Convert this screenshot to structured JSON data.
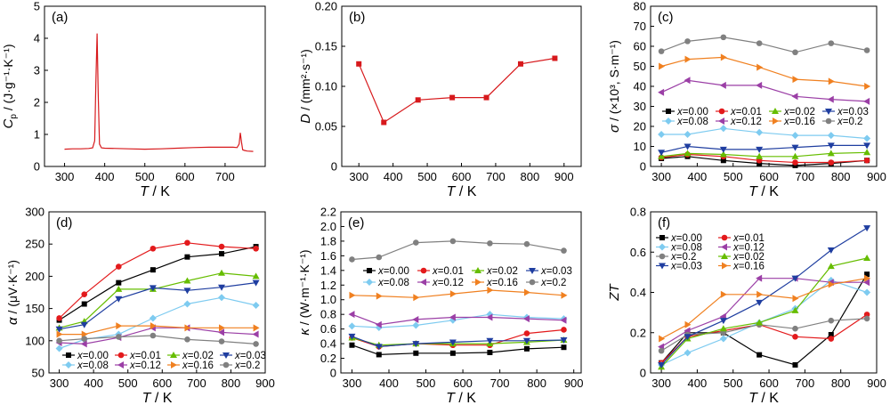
{
  "chart_data": [
    {
      "panel": "(a)",
      "type": "line",
      "ylabel_var": "C",
      "ylabel_sub": "p",
      "ylabel_unit": " / (J·g⁻¹·K⁻¹)",
      "xlabel_var": "T",
      "xlabel_unit": " / K",
      "xlim": [
        250,
        800
      ],
      "xticks": [
        300,
        400,
        500,
        600,
        700
      ],
      "ylim": [
        0,
        5
      ],
      "yticks": [
        0,
        1,
        2,
        3,
        4,
        5
      ],
      "legend": [],
      "series": [
        {
          "color": "#d7191c",
          "marker": "none",
          "x": [
            300,
            320,
            340,
            360,
            370,
            375,
            378,
            381,
            384,
            387,
            392,
            400,
            430,
            460,
            500,
            540,
            580,
            620,
            660,
            700,
            720,
            730,
            735,
            738,
            741,
            744,
            748,
            755,
            770
          ],
          "y": [
            0.54,
            0.55,
            0.55,
            0.56,
            0.58,
            0.8,
            2.6,
            4.15,
            2.2,
            0.7,
            0.58,
            0.57,
            0.56,
            0.55,
            0.54,
            0.55,
            0.57,
            0.59,
            0.6,
            0.6,
            0.6,
            0.59,
            0.7,
            1.05,
            0.75,
            0.52,
            0.5,
            0.48,
            0.47
          ]
        }
      ]
    },
    {
      "panel": "(b)",
      "type": "line",
      "ylabel_var": "D",
      "ylabel_sub": "",
      "ylabel_unit": " / (mm²·s⁻¹)",
      "xlabel_var": "T",
      "xlabel_unit": " / K",
      "xlim": [
        250,
        950
      ],
      "xticks": [
        300,
        400,
        500,
        600,
        700,
        800,
        900
      ],
      "ylim": [
        0,
        0.2
      ],
      "yticks": [
        0,
        0.05,
        0.1,
        0.15,
        0.2
      ],
      "yticklabels": [
        "0",
        "0.05",
        "0.10",
        "0.15",
        "0.20"
      ],
      "legend": [],
      "series": [
        {
          "color": "#d7191c",
          "marker": "square",
          "x": [
            300,
            373,
            473,
            573,
            673,
            773,
            873
          ],
          "y": [
            0.128,
            0.055,
            0.083,
            0.086,
            0.086,
            0.128,
            0.135
          ]
        }
      ]
    },
    {
      "panel": "(c)",
      "type": "line",
      "ylabel_var": "σ",
      "ylabel_sub": "",
      "ylabel_unit": " / (×10³, S·m⁻¹)",
      "xlabel_var": "T",
      "xlabel_unit": " / K",
      "xlim": [
        270,
        900
      ],
      "xticks": [
        300,
        400,
        500,
        600,
        700,
        800,
        900
      ],
      "ylim": [
        0,
        80
      ],
      "yticks": [
        0,
        10,
        20,
        30,
        40,
        50,
        60,
        70,
        80
      ],
      "legend": [
        "x=0.00",
        "x=0.01",
        "x=0.02",
        "x=0.03",
        "x=0.08",
        "x=0.12",
        "x=0.16",
        "x=0.2"
      ],
      "series": [
        {
          "name": "x=0.00",
          "color": "#000000",
          "marker": "square",
          "x": [
            300,
            373,
            473,
            573,
            673,
            773,
            873
          ],
          "y": [
            4,
            5,
            3,
            1.5,
            0.5,
            1.5,
            3
          ]
        },
        {
          "name": "x=0.01",
          "color": "#e31a1c",
          "marker": "circle",
          "x": [
            300,
            373,
            473,
            573,
            673,
            773,
            873
          ],
          "y": [
            4.5,
            6,
            5,
            3,
            2,
            2,
            3
          ]
        },
        {
          "name": "x=0.02",
          "color": "#66bd00",
          "marker": "triangle",
          "x": [
            300,
            373,
            473,
            573,
            673,
            773,
            873
          ],
          "y": [
            5,
            6.5,
            6,
            5,
            5,
            6.5,
            7
          ]
        },
        {
          "name": "x=0.03",
          "color": "#1f3ea0",
          "marker": "triangle-down",
          "x": [
            300,
            373,
            473,
            573,
            673,
            773,
            873
          ],
          "y": [
            7,
            10,
            8.5,
            8.5,
            9.5,
            10.5,
            10.5
          ]
        },
        {
          "name": "x=0.08",
          "color": "#7ecbf0",
          "marker": "diamond",
          "x": [
            300,
            373,
            473,
            573,
            673,
            773,
            873
          ],
          "y": [
            16,
            16,
            19,
            17,
            15.5,
            15.5,
            14
          ]
        },
        {
          "name": "x=0.12",
          "color": "#9b3fa6",
          "marker": "triangle-left",
          "x": [
            300,
            373,
            473,
            573,
            673,
            773,
            873
          ],
          "y": [
            37,
            43,
            40.5,
            40.5,
            35,
            33.5,
            32.5
          ]
        },
        {
          "name": "x=0.16",
          "color": "#f08020",
          "marker": "triangle-right",
          "x": [
            300,
            373,
            473,
            573,
            673,
            773,
            873
          ],
          "y": [
            50,
            53.5,
            54.5,
            49.5,
            43.5,
            42.5,
            40
          ]
        },
        {
          "name": "x=0.2",
          "color": "#808080",
          "marker": "circle",
          "x": [
            300,
            373,
            473,
            573,
            673,
            773,
            873
          ],
          "y": [
            57.5,
            62.5,
            64.5,
            61.5,
            57,
            61.5,
            58
          ]
        }
      ]
    },
    {
      "panel": "(d)",
      "type": "line",
      "ylabel_var": "α",
      "ylabel_sub": "",
      "ylabel_unit": " / (μV·K⁻¹)",
      "xlabel_var": "T",
      "xlabel_unit": " / K",
      "xlim": [
        270,
        900
      ],
      "xticks": [
        300,
        400,
        500,
        600,
        700,
        800,
        900
      ],
      "ylim": [
        50,
        300
      ],
      "yticks": [
        50,
        100,
        150,
        200,
        250,
        300
      ],
      "legend": [
        "x=0.00",
        "x=0.01",
        "x=0.02",
        "x=0.03",
        "x=0.08",
        "x=0.12",
        "x=0.16",
        "x=0.2"
      ],
      "series": [
        {
          "name": "x=0.00",
          "color": "#000000",
          "marker": "square",
          "x": [
            300,
            373,
            473,
            573,
            673,
            773,
            873
          ],
          "y": [
            132,
            157,
            190,
            210,
            230,
            235,
            246
          ]
        },
        {
          "name": "x=0.01",
          "color": "#e31a1c",
          "marker": "circle",
          "x": [
            300,
            373,
            473,
            573,
            673,
            773,
            873
          ],
          "y": [
            135,
            172,
            215,
            243,
            252,
            246,
            243
          ]
        },
        {
          "name": "x=0.02",
          "color": "#66bd00",
          "marker": "triangle",
          "x": [
            300,
            373,
            473,
            573,
            673,
            773,
            873
          ],
          "y": [
            120,
            130,
            180,
            180,
            193,
            205,
            200
          ]
        },
        {
          "name": "x=0.03",
          "color": "#1f3ea0",
          "marker": "triangle-down",
          "x": [
            300,
            373,
            473,
            573,
            673,
            773,
            873
          ],
          "y": [
            118,
            125,
            165,
            182,
            178,
            183,
            190
          ]
        },
        {
          "name": "x=0.08",
          "color": "#7ecbf0",
          "marker": "diamond",
          "x": [
            300,
            373,
            473,
            573,
            673,
            773,
            873
          ],
          "y": [
            88,
            102,
            110,
            135,
            157,
            167,
            155
          ]
        },
        {
          "name": "x=0.12",
          "color": "#9b3fa6",
          "marker": "triangle-left",
          "x": [
            300,
            373,
            473,
            573,
            673,
            773,
            873
          ],
          "y": [
            97,
            95,
            105,
            120,
            120,
            113,
            110
          ]
        },
        {
          "name": "x=0.16",
          "color": "#f08020",
          "marker": "triangle-right",
          "x": [
            300,
            373,
            473,
            573,
            673,
            773,
            873
          ],
          "y": [
            110,
            110,
            123,
            123,
            120,
            120,
            120
          ]
        },
        {
          "name": "x=0.2",
          "color": "#808080",
          "marker": "circle",
          "x": [
            300,
            373,
            473,
            573,
            673,
            773,
            873
          ],
          "y": [
            100,
            103,
            106,
            108,
            102,
            99,
            95
          ]
        }
      ]
    },
    {
      "panel": "(e)",
      "type": "line",
      "ylabel_var": "κ",
      "ylabel_sub": "",
      "ylabel_unit": " / (W·m⁻¹·K⁻¹)",
      "xlabel_var": "T",
      "xlabel_unit": " / K",
      "xlim": [
        270,
        920
      ],
      "xticks": [
        300,
        400,
        500,
        600,
        700,
        800,
        900
      ],
      "ylim": [
        0,
        2.2
      ],
      "yticks": [
        0,
        0.2,
        0.4,
        0.6,
        0.8,
        1.0,
        1.2,
        1.4,
        1.6,
        1.8,
        2.0,
        2.2
      ],
      "yticklabels": [
        "0",
        "0.2",
        "0.4",
        "0.6",
        "0.8",
        "1.0",
        "1.2",
        "1.4",
        "1.6",
        "1.8",
        "2.0",
        "2.2"
      ],
      "legend": [
        "x=0.00",
        "x=0.01",
        "x=0.02",
        "x=0.03",
        "x=0.08",
        "x=0.12",
        "x=0.16",
        "x=0.2"
      ],
      "series": [
        {
          "name": "x=0.00",
          "color": "#000000",
          "marker": "square",
          "x": [
            300,
            373,
            473,
            573,
            673,
            773,
            873
          ],
          "y": [
            0.38,
            0.25,
            0.27,
            0.27,
            0.28,
            0.33,
            0.35
          ]
        },
        {
          "name": "x=0.01",
          "color": "#e31a1c",
          "marker": "circle",
          "x": [
            300,
            373,
            473,
            573,
            673,
            773,
            873
          ],
          "y": [
            0.48,
            0.36,
            0.4,
            0.38,
            0.38,
            0.54,
            0.59
          ]
        },
        {
          "name": "x=0.02",
          "color": "#66bd00",
          "marker": "triangle",
          "x": [
            300,
            373,
            473,
            573,
            673,
            773,
            873
          ],
          "y": [
            0.48,
            0.38,
            0.4,
            0.4,
            0.4,
            0.42,
            0.45
          ]
        },
        {
          "name": "x=0.03",
          "color": "#1f3ea0",
          "marker": "triangle-down",
          "x": [
            300,
            373,
            473,
            573,
            673,
            773,
            873
          ],
          "y": [
            0.5,
            0.36,
            0.4,
            0.42,
            0.44,
            0.44,
            0.45
          ]
        },
        {
          "name": "x=0.08",
          "color": "#7ecbf0",
          "marker": "diamond",
          "x": [
            300,
            373,
            473,
            573,
            673,
            773,
            873
          ],
          "y": [
            0.64,
            0.62,
            0.65,
            0.72,
            0.8,
            0.76,
            0.74
          ]
        },
        {
          "name": "x=0.12",
          "color": "#9b3fa6",
          "marker": "triangle-left",
          "x": [
            300,
            373,
            473,
            573,
            673,
            773,
            873
          ],
          "y": [
            0.8,
            0.66,
            0.73,
            0.76,
            0.76,
            0.74,
            0.72
          ]
        },
        {
          "name": "x=0.16",
          "color": "#f08020",
          "marker": "triangle-right",
          "x": [
            300,
            373,
            473,
            573,
            673,
            773,
            873
          ],
          "y": [
            1.06,
            1.05,
            1.03,
            1.08,
            1.13,
            1.1,
            1.06
          ]
        },
        {
          "name": "x=0.2",
          "color": "#808080",
          "marker": "circle",
          "x": [
            300,
            373,
            473,
            573,
            673,
            773,
            873
          ],
          "y": [
            1.55,
            1.58,
            1.78,
            1.8,
            1.77,
            1.76,
            1.67
          ]
        }
      ]
    },
    {
      "panel": "(f)",
      "type": "line",
      "ylabel_var": "ZT",
      "ylabel_sub": "",
      "ylabel_unit": "",
      "xlabel_var": "T",
      "xlabel_unit": " / K",
      "xlim": [
        270,
        900
      ],
      "xticks": [
        300,
        400,
        500,
        600,
        700,
        800,
        900
      ],
      "ylim": [
        0,
        0.8
      ],
      "yticks": [
        0,
        0.2,
        0.4,
        0.6,
        0.8
      ],
      "yticklabels": [
        "0",
        "0.2",
        "0.4",
        "0.6",
        "0.8"
      ],
      "legend": [
        "x=0.00",
        "x=0.01",
        "x=0.08",
        "x=0.12",
        "x=0.2",
        "x=0.02",
        "x=0.03",
        "x=0.16"
      ],
      "series": [
        {
          "name": "x=0.00",
          "color": "#000000",
          "marker": "square",
          "x": [
            300,
            373,
            473,
            573,
            673,
            773,
            873
          ],
          "y": [
            0.05,
            0.2,
            0.2,
            0.09,
            0.04,
            0.19,
            0.49
          ]
        },
        {
          "name": "x=0.01",
          "color": "#e31a1c",
          "marker": "circle",
          "x": [
            300,
            373,
            473,
            573,
            673,
            773,
            873
          ],
          "y": [
            0.05,
            0.18,
            0.21,
            0.24,
            0.18,
            0.17,
            0.29
          ]
        },
        {
          "name": "x=0.08",
          "color": "#7ecbf0",
          "marker": "diamond",
          "x": [
            300,
            373,
            473,
            573,
            673,
            773,
            873
          ],
          "y": [
            0.04,
            0.1,
            0.17,
            0.25,
            0.32,
            0.46,
            0.4
          ]
        },
        {
          "name": "x=0.12",
          "color": "#9b3fa6",
          "marker": "triangle-left",
          "x": [
            300,
            373,
            473,
            573,
            673,
            773,
            873
          ],
          "y": [
            0.13,
            0.21,
            0.28,
            0.47,
            0.47,
            0.45,
            0.45
          ]
        },
        {
          "name": "x=0.2",
          "color": "#808080",
          "marker": "circle",
          "x": [
            300,
            373,
            473,
            573,
            673,
            773,
            873
          ],
          "y": [
            0.11,
            0.19,
            0.2,
            0.24,
            0.22,
            0.26,
            0.27
          ]
        },
        {
          "name": "x=0.02",
          "color": "#66bd00",
          "marker": "triangle",
          "x": [
            300,
            373,
            473,
            573,
            673,
            773,
            873
          ],
          "y": [
            0.03,
            0.17,
            0.22,
            0.25,
            0.31,
            0.53,
            0.57
          ]
        },
        {
          "name": "x=0.03",
          "color": "#1f3ea0",
          "marker": "triangle-down",
          "x": [
            300,
            373,
            473,
            573,
            673,
            773,
            873
          ],
          "y": [
            0.04,
            0.18,
            0.26,
            0.35,
            0.47,
            0.61,
            0.72
          ]
        },
        {
          "name": "x=0.16",
          "color": "#f08020",
          "marker": "triangle-right",
          "x": [
            300,
            373,
            473,
            573,
            673,
            773,
            873
          ],
          "y": [
            0.17,
            0.24,
            0.39,
            0.39,
            0.37,
            0.44,
            0.47
          ]
        }
      ]
    }
  ]
}
